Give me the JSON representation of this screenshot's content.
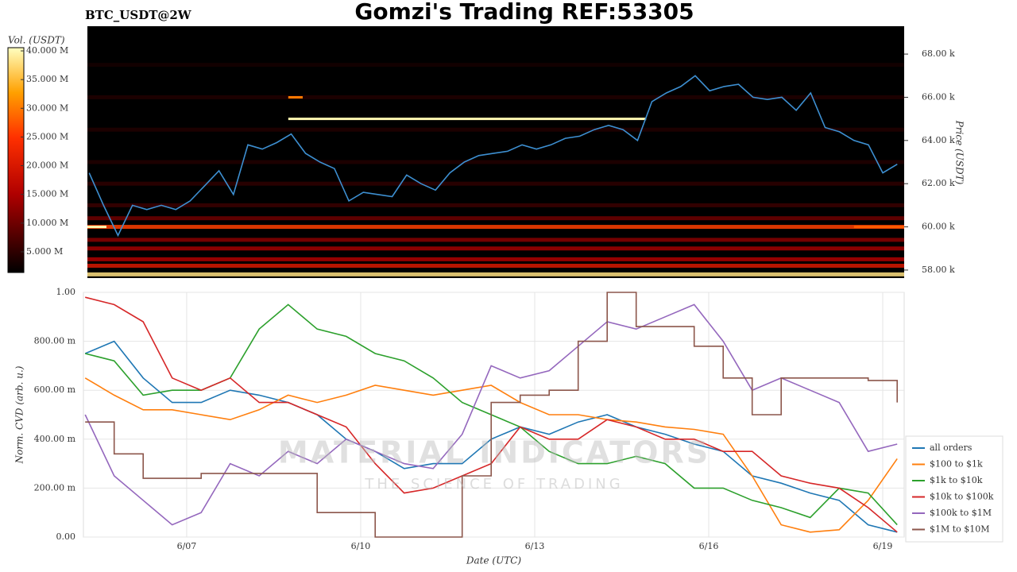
{
  "header": {
    "title": "Gomzi's Trading REF:53305",
    "symbol": "BTC_USDT@2W",
    "watermark": "MATERIAL INDICATORS",
    "watermark_subtitle": "THE SCIENCE OF TRADING"
  },
  "chart_data": [
    {
      "type": "heatmap",
      "y_label": "Price (USDT)",
      "xlim": [
        5.22,
        19.37
      ],
      "ylim": [
        57630,
        69290
      ],
      "yticks": [
        {
          "value": 58000,
          "label": "58.00 k"
        },
        {
          "value": 60000,
          "label": "60.00 k"
        },
        {
          "value": 62000,
          "label": "62.00 k"
        },
        {
          "value": 64000,
          "label": "64.00 k"
        },
        {
          "value": 66000,
          "label": "66.00 k"
        },
        {
          "value": 68000,
          "label": "68.00 k"
        }
      ],
      "color": "#3d8fd1",
      "x": [
        5.25,
        5.5,
        5.75,
        6.0,
        6.25,
        6.5,
        6.75,
        7.0,
        7.25,
        7.5,
        7.75,
        8.0,
        8.25,
        8.5,
        8.75,
        9.0,
        9.25,
        9.5,
        9.75,
        10.0,
        10.25,
        10.5,
        10.75,
        11.0,
        11.25,
        11.5,
        11.75,
        12.0,
        12.25,
        12.5,
        12.75,
        13.0,
        13.25,
        13.5,
        13.75,
        14.0,
        14.25,
        14.5,
        14.75,
        15.0,
        15.25,
        15.5,
        15.75,
        16.0,
        16.25,
        16.5,
        16.75,
        17.0,
        17.25,
        17.5,
        17.75,
        18.0,
        18.25,
        18.5,
        18.75,
        19.0,
        19.25
      ],
      "values": [
        62500,
        61000,
        59600,
        61000,
        60800,
        61000,
        60800,
        61200,
        61900,
        62600,
        61500,
        63800,
        63600,
        63900,
        64300,
        63400,
        63000,
        62700,
        61200,
        61600,
        61500,
        61400,
        62400,
        62000,
        61700,
        62500,
        63000,
        63300,
        63400,
        63500,
        63800,
        63600,
        63800,
        64100,
        64200,
        64500,
        64700,
        64500,
        64000,
        65800,
        66200,
        66500,
        67000,
        66300,
        66500,
        66600,
        66000,
        65900,
        66000,
        65400,
        66200,
        64600,
        64400,
        64000,
        63800,
        62500,
        62900
      ],
      "heat_levels": [
        {
          "price": 57800,
          "volume": 38000000
        },
        {
          "price": 58200,
          "volume": 20000000
        },
        {
          "price": 58500,
          "volume": 15000000
        },
        {
          "price": 59000,
          "volume": 14000000
        },
        {
          "price": 59400,
          "volume": 12000000
        },
        {
          "price": 60000,
          "volume": 26000000
        },
        {
          "price": 60400,
          "volume": 10000000
        },
        {
          "price": 61000,
          "volume": 6000000
        },
        {
          "price": 62000,
          "volume": 5000000
        },
        {
          "price": 63000,
          "volume": 4000000
        },
        {
          "price": 64500,
          "volume": 4000000
        },
        {
          "price": 66000,
          "volume": 4000000
        },
        {
          "price": 67500,
          "volume": 3000000
        }
      ],
      "orders": [
        {
          "x": [
            5.22,
            5.55
          ],
          "price": 60000,
          "volume": 40000000
        },
        {
          "x": [
            8.7,
            14.9
          ],
          "price": 65000,
          "volume": 40000000
        },
        {
          "x": [
            8.7,
            8.95
          ],
          "price": 66000,
          "volume": 30000000
        },
        {
          "x": [
            18.5,
            19.37
          ],
          "price": 60000,
          "volume": 28000000
        }
      ],
      "colorbar": {
        "label": "Vol. (USDT)",
        "lim": [
          1400000,
          40560000
        ],
        "ticks": [
          {
            "value": 5000000,
            "label": "5.000 M"
          },
          {
            "value": 10000000,
            "label": "10.000 M"
          },
          {
            "value": 15000000,
            "label": "15.000 M"
          },
          {
            "value": 20000000,
            "label": "20.000 M"
          },
          {
            "value": 25000000,
            "label": "25.000 M"
          },
          {
            "value": 30000000,
            "label": "30.000 M"
          },
          {
            "value": 35000000,
            "label": "35.000 M"
          },
          {
            "value": 40000000,
            "label": "40.000 M"
          }
        ]
      }
    },
    {
      "type": "line",
      "x_label": "Date (UTC)",
      "y_label": "Norm. CVD (arb. u.)",
      "xlim": [
        5.22,
        19.37
      ],
      "ylim": [
        0,
        1
      ],
      "xticks": [
        {
          "value": 7,
          "label": "6/07"
        },
        {
          "value": 10,
          "label": "6/10"
        },
        {
          "value": 13,
          "label": "6/13"
        },
        {
          "value": 16,
          "label": "6/16"
        },
        {
          "value": 19,
          "label": "6/19"
        }
      ],
      "yticks": [
        {
          "value": 0,
          "label": "0.00"
        },
        {
          "value": 0.2,
          "label": "200.00 m"
        },
        {
          "value": 0.4,
          "label": "400.00 m"
        },
        {
          "value": 0.6,
          "label": "600.00 m"
        },
        {
          "value": 0.8,
          "label": "800.00 m"
        },
        {
          "value": 1,
          "label": "1.00"
        }
      ],
      "grid": true,
      "legend": "lower right",
      "x": [
        5.25,
        5.75,
        6.25,
        6.75,
        7.25,
        7.75,
        8.25,
        8.75,
        9.25,
        9.75,
        10.25,
        10.75,
        11.25,
        11.75,
        12.25,
        12.75,
        13.25,
        13.75,
        14.25,
        14.75,
        15.25,
        15.75,
        16.25,
        16.75,
        17.25,
        17.75,
        18.25,
        18.75,
        19.25
      ],
      "series": [
        {
          "name": "all orders",
          "color": "#1f77b4",
          "values": [
            0.75,
            0.8,
            0.65,
            0.55,
            0.55,
            0.6,
            0.58,
            0.55,
            0.5,
            0.4,
            0.35,
            0.28,
            0.3,
            0.3,
            0.4,
            0.45,
            0.42,
            0.47,
            0.5,
            0.45,
            0.42,
            0.38,
            0.35,
            0.25,
            0.22,
            0.18,
            0.15,
            0.05,
            0.02
          ]
        },
        {
          "name": "$100 to $1k",
          "color": "#ff7f0e",
          "values": [
            0.65,
            0.58,
            0.52,
            0.52,
            0.5,
            0.48,
            0.52,
            0.58,
            0.55,
            0.58,
            0.62,
            0.6,
            0.58,
            0.6,
            0.62,
            0.55,
            0.5,
            0.5,
            0.48,
            0.47,
            0.45,
            0.44,
            0.42,
            0.25,
            0.05,
            0.02,
            0.03,
            0.15,
            0.32
          ]
        },
        {
          "name": "$1k to $10k",
          "color": "#2ca02c",
          "values": [
            0.75,
            0.72,
            0.58,
            0.6,
            0.6,
            0.65,
            0.85,
            0.95,
            0.85,
            0.82,
            0.75,
            0.72,
            0.65,
            0.55,
            0.5,
            0.45,
            0.35,
            0.3,
            0.3,
            0.33,
            0.3,
            0.2,
            0.2,
            0.15,
            0.12,
            0.08,
            0.2,
            0.18,
            0.05
          ]
        },
        {
          "name": "$10k to $100k",
          "color": "#d62728",
          "values": [
            0.98,
            0.95,
            0.88,
            0.65,
            0.6,
            0.65,
            0.55,
            0.55,
            0.5,
            0.45,
            0.3,
            0.18,
            0.2,
            0.25,
            0.3,
            0.45,
            0.4,
            0.4,
            0.48,
            0.45,
            0.4,
            0.4,
            0.35,
            0.35,
            0.25,
            0.22,
            0.2,
            0.12,
            0.02
          ]
        },
        {
          "name": "$100k to $1M",
          "color": "#9467bd",
          "values": [
            0.5,
            0.25,
            0.15,
            0.05,
            0.1,
            0.3,
            0.25,
            0.35,
            0.3,
            0.4,
            0.35,
            0.3,
            0.28,
            0.42,
            0.7,
            0.65,
            0.68,
            0.78,
            0.88,
            0.85,
            0.9,
            0.95,
            0.8,
            0.6,
            0.65,
            0.6,
            0.55,
            0.35,
            0.38
          ]
        },
        {
          "name": "$1M to $10M",
          "color": "#8c564b",
          "line_shape": "hv",
          "values": [
            0.47,
            0.34,
            0.24,
            0.24,
            0.26,
            0.26,
            0.26,
            0.26,
            0.1,
            0.1,
            0,
            0,
            0,
            0.25,
            0.55,
            0.58,
            0.6,
            0.8,
            1.0,
            0.86,
            0.86,
            0.78,
            0.65,
            0.5,
            0.65,
            0.65,
            0.65,
            0.64,
            0.55
          ]
        }
      ]
    }
  ]
}
